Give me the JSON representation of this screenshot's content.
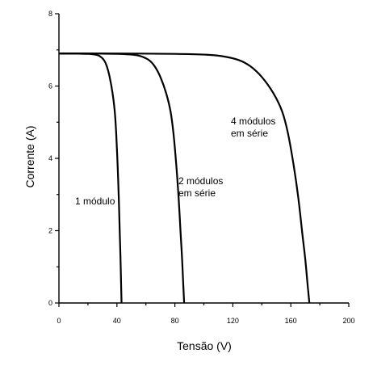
{
  "chart_data": {
    "type": "line",
    "xlabel": "Tensão (V)",
    "ylabel": "Corrente (A)",
    "xlim": [
      0,
      200
    ],
    "ylim": [
      0,
      8
    ],
    "x_ticks": [
      0,
      40,
      80,
      120,
      160,
      200
    ],
    "y_ticks": [
      0,
      2,
      4,
      6,
      8
    ],
    "grid": false,
    "series": [
      {
        "name": "1 módulo",
        "x": [
          0,
          10,
          20,
          25,
          28,
          31,
          33,
          35,
          37,
          38.5,
          39.5,
          40.5,
          41.3,
          42,
          42.5,
          42.9,
          43.2
        ],
        "y": [
          6.9,
          6.9,
          6.89,
          6.87,
          6.83,
          6.72,
          6.55,
          6.25,
          5.8,
          5.3,
          4.7,
          3.8,
          2.9,
          1.9,
          1.2,
          0.5,
          0
        ]
      },
      {
        "name": "2 módulos em série",
        "x": [
          0,
          20,
          40,
          50,
          56,
          62,
          66,
          70,
          74,
          77,
          79,
          81,
          82.6,
          84,
          85,
          85.8,
          86.4
        ],
        "y": [
          6.9,
          6.9,
          6.89,
          6.87,
          6.83,
          6.72,
          6.55,
          6.25,
          5.8,
          5.3,
          4.7,
          3.8,
          2.9,
          1.9,
          1.2,
          0.5,
          0
        ]
      },
      {
        "name": "4 módulos em série",
        "x": [
          0,
          40,
          80,
          100,
          112,
          124,
          132,
          140,
          148,
          154,
          158,
          162,
          165.2,
          168,
          170,
          171.6,
          172.8
        ],
        "y": [
          6.9,
          6.9,
          6.89,
          6.87,
          6.83,
          6.72,
          6.55,
          6.25,
          5.8,
          5.3,
          4.7,
          3.8,
          2.9,
          1.9,
          1.2,
          0.5,
          0
        ]
      }
    ],
    "annotations": {
      "one_module": "1 módulo",
      "two_modules_line1": "2 módulos",
      "two_modules_line2": "em série",
      "four_modules_line1": "4 módulos",
      "four_modules_line2": "em série"
    }
  }
}
